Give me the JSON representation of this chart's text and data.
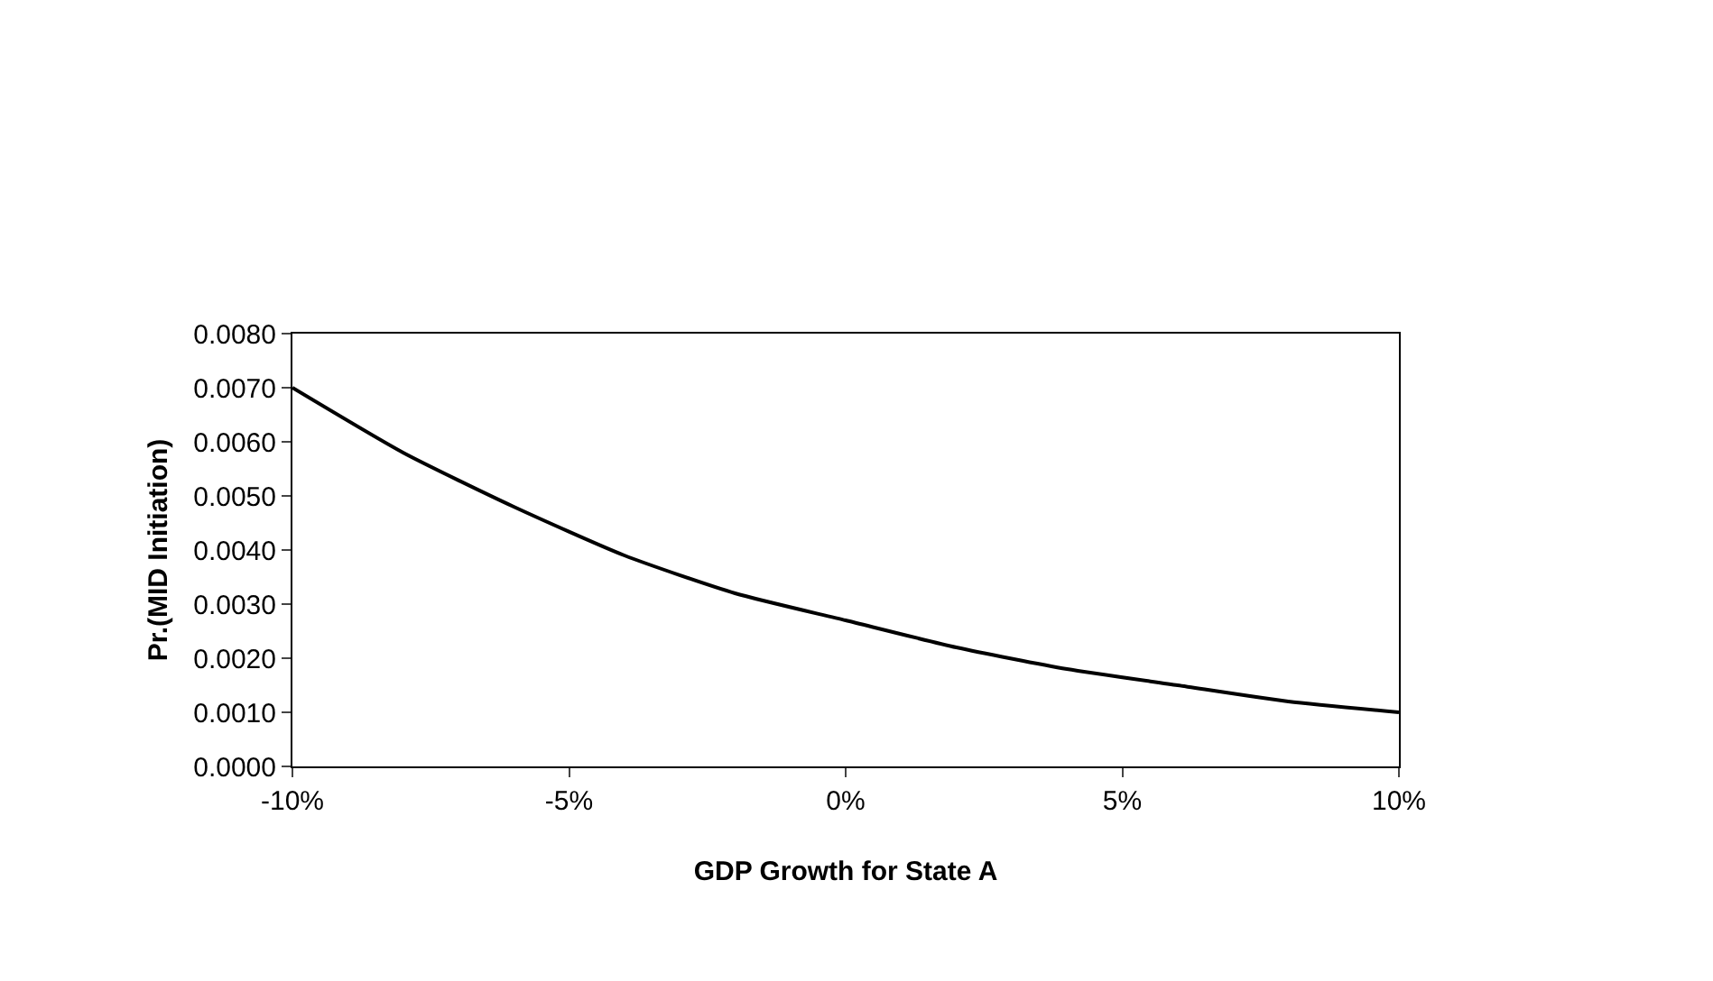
{
  "chart_data": {
    "type": "line",
    "xlabel": "GDP Growth for State A",
    "ylabel": "Pr.(MID Initiation)",
    "x": [
      -10,
      -8,
      -6,
      -4,
      -2,
      0,
      2,
      4,
      6,
      8,
      10
    ],
    "series": [
      {
        "color": "#000000",
        "values": [
          0.007,
          0.0058,
          0.0048,
          0.0039,
          0.0032,
          0.0027,
          0.0022,
          0.0018,
          0.0015,
          0.0012,
          0.001
        ]
      }
    ],
    "xlim": [
      -10,
      10
    ],
    "xticks": [
      {
        "value": -10,
        "label": "-10%"
      },
      {
        "value": -5,
        "label": "-5%"
      },
      {
        "value": 0,
        "label": "0%"
      },
      {
        "value": 5,
        "label": "5%"
      },
      {
        "value": 10,
        "label": "10%"
      }
    ],
    "ylim": [
      0,
      0.008
    ],
    "yticks": [
      {
        "value": 0,
        "label": "0.0000"
      },
      {
        "value": 0.001,
        "label": "0.0010"
      },
      {
        "value": 0.002,
        "label": "0.0020"
      },
      {
        "value": 0.003,
        "label": "0.0030"
      },
      {
        "value": 0.004,
        "label": "0.0040"
      },
      {
        "value": 0.005,
        "label": "0.0050"
      },
      {
        "value": 0.006,
        "label": "0.0060"
      },
      {
        "value": 0.007,
        "label": "0.0070"
      },
      {
        "value": 0.008,
        "label": "0.0080"
      }
    ],
    "marker": "none",
    "line_style": "solid"
  }
}
